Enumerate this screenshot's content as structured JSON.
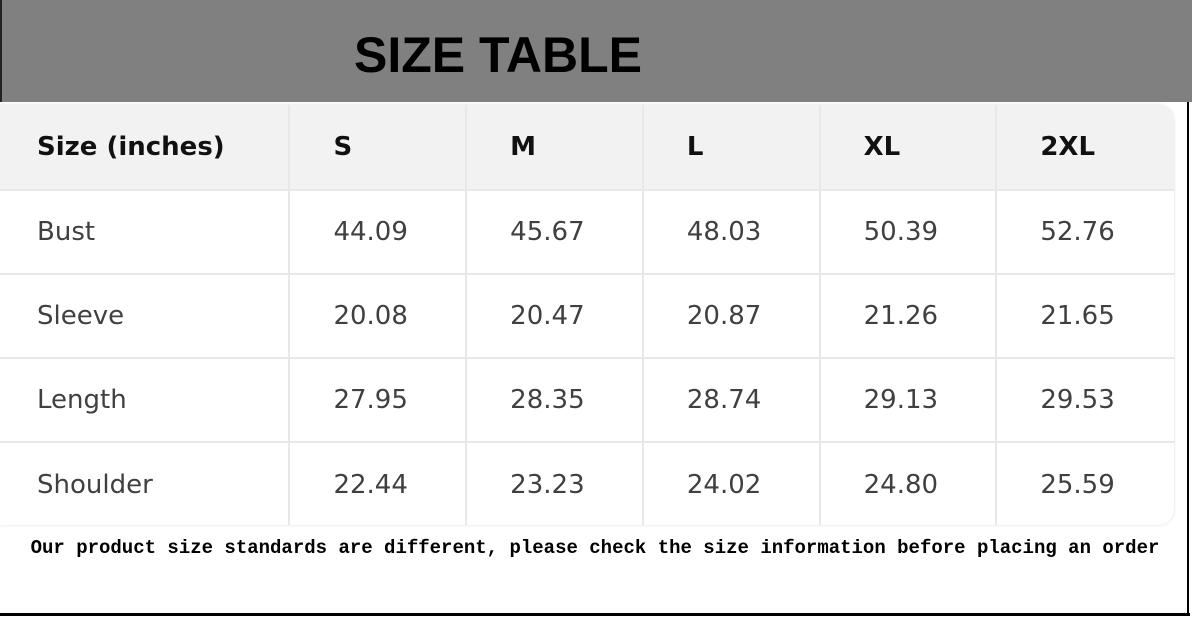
{
  "title": "SIZE TABLE",
  "table": {
    "headers": [
      "Size (inches)",
      "S",
      "M",
      "L",
      "XL",
      "2XL"
    ],
    "rows": [
      [
        "Bust",
        "44.09",
        "45.67",
        "48.03",
        "50.39",
        "52.76"
      ],
      [
        "Sleeve",
        "20.08",
        "20.47",
        "20.87",
        "21.26",
        "21.65"
      ],
      [
        "Length",
        "27.95",
        "28.35",
        "28.74",
        "29.13",
        "29.53"
      ],
      [
        "Shoulder",
        "22.44",
        "23.23",
        "24.02",
        "24.80",
        "25.59"
      ]
    ]
  },
  "note": "Our product size standards are different, please check the size information before placing an order"
}
